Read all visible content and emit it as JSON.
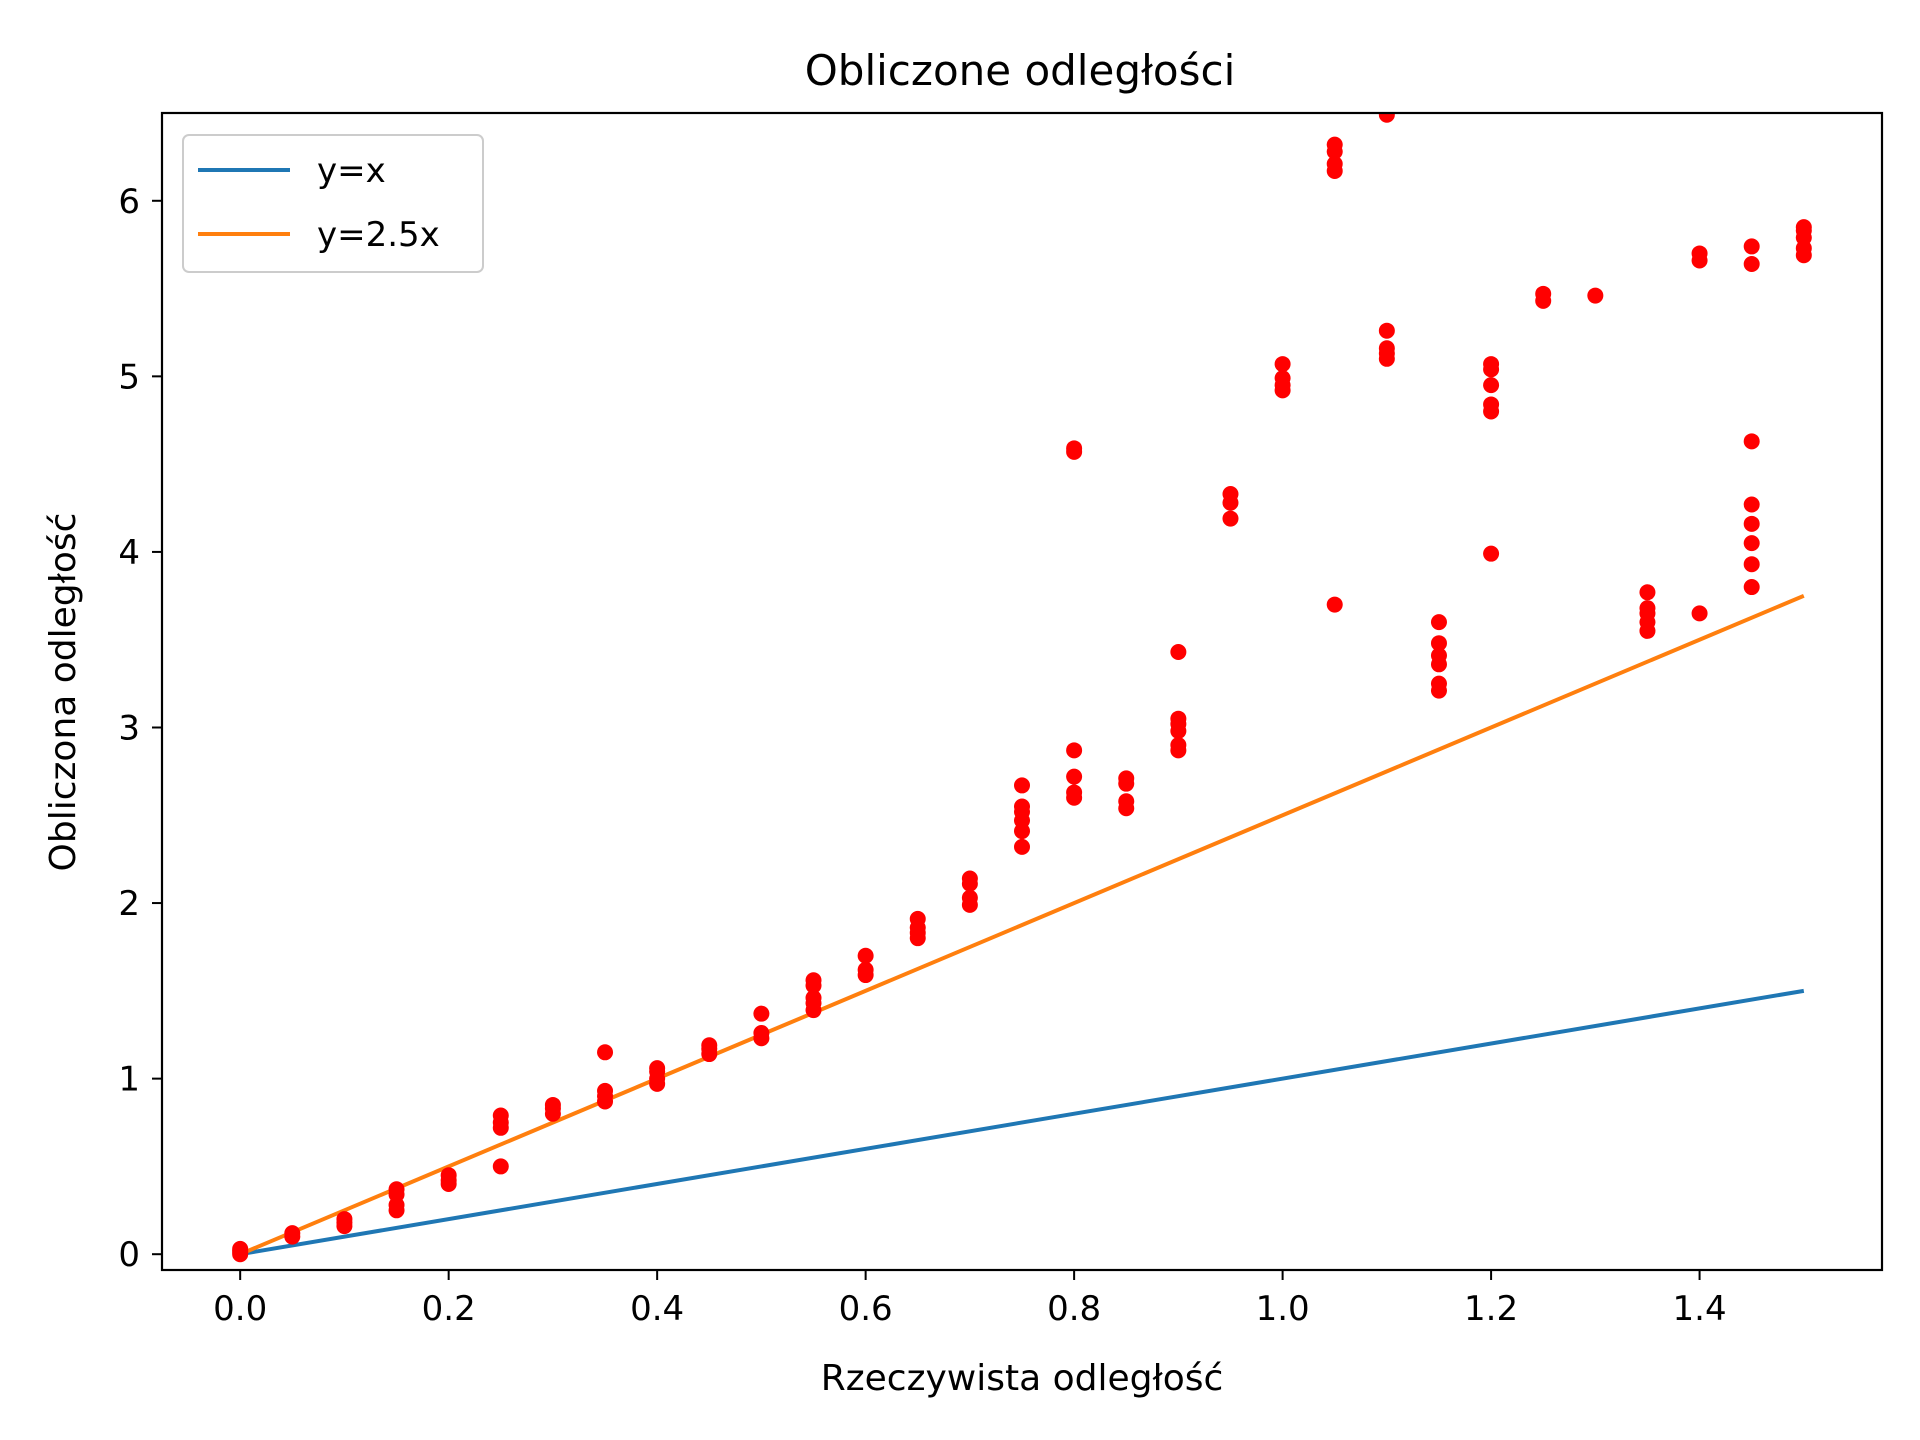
{
  "chart_data": {
    "type": "scatter",
    "title": "Obliczone odległości",
    "xlabel": "Rzeczywista odległość",
    "ylabel": "Obliczona odległość",
    "xlim": [
      -0.075,
      1.575
    ],
    "ylim": [
      -0.09,
      6.5
    ],
    "grid": false,
    "legend_position": "top-left",
    "x_ticks": [
      "0.0",
      "0.2",
      "0.4",
      "0.6",
      "0.8",
      "1.0",
      "1.2",
      "1.4"
    ],
    "y_ticks": [
      "0",
      "1",
      "2",
      "3",
      "4",
      "5",
      "6"
    ],
    "lines": [
      {
        "name": "y=x",
        "color": "#1f77b4",
        "x": [
          0,
          1.5
        ],
        "y": [
          0,
          1.5
        ]
      },
      {
        "name": "y=2.5x",
        "color": "#ff7f0e",
        "x": [
          0,
          1.5
        ],
        "y": [
          0,
          3.75
        ]
      }
    ],
    "scatter": {
      "color": "#ff0000",
      "points": [
        [
          0,
          0.0
        ],
        [
          0,
          0.01
        ],
        [
          0,
          0.03
        ],
        [
          0,
          0.02
        ],
        [
          0.05,
          0.1
        ],
        [
          0.05,
          0.12
        ],
        [
          0.1,
          0.16
        ],
        [
          0.1,
          0.18
        ],
        [
          0.1,
          0.2
        ],
        [
          0.15,
          0.25
        ],
        [
          0.15,
          0.28
        ],
        [
          0.15,
          0.34
        ],
        [
          0.15,
          0.37
        ],
        [
          0.2,
          0.4
        ],
        [
          0.2,
          0.42
        ],
        [
          0.2,
          0.45
        ],
        [
          0.25,
          0.5
        ],
        [
          0.25,
          0.72
        ],
        [
          0.25,
          0.75
        ],
        [
          0.25,
          0.79
        ],
        [
          0.3,
          0.8
        ],
        [
          0.3,
          0.83
        ],
        [
          0.3,
          0.85
        ],
        [
          0.35,
          0.87
        ],
        [
          0.35,
          0.9
        ],
        [
          0.35,
          0.93
        ],
        [
          0.35,
          1.15
        ],
        [
          0.4,
          0.97
        ],
        [
          0.4,
          1.0
        ],
        [
          0.4,
          1.04
        ],
        [
          0.4,
          1.06
        ],
        [
          0.45,
          1.14
        ],
        [
          0.45,
          1.17
        ],
        [
          0.45,
          1.19
        ],
        [
          0.5,
          1.23
        ],
        [
          0.5,
          1.26
        ],
        [
          0.5,
          1.37
        ],
        [
          0.55,
          1.39
        ],
        [
          0.55,
          1.43
        ],
        [
          0.55,
          1.46
        ],
        [
          0.55,
          1.53
        ],
        [
          0.55,
          1.56
        ],
        [
          0.6,
          1.59
        ],
        [
          0.6,
          1.62
        ],
        [
          0.6,
          1.7
        ],
        [
          0.65,
          1.8
        ],
        [
          0.65,
          1.83
        ],
        [
          0.65,
          1.86
        ],
        [
          0.65,
          1.91
        ],
        [
          0.7,
          1.99
        ],
        [
          0.7,
          2.03
        ],
        [
          0.7,
          2.11
        ],
        [
          0.7,
          2.14
        ],
        [
          0.75,
          2.32
        ],
        [
          0.75,
          2.41
        ],
        [
          0.75,
          2.47
        ],
        [
          0.75,
          2.52
        ],
        [
          0.75,
          2.55
        ],
        [
          0.75,
          2.67
        ],
        [
          0.8,
          2.6
        ],
        [
          0.8,
          2.63
        ],
        [
          0.8,
          2.72
        ],
        [
          0.8,
          2.87
        ],
        [
          0.8,
          4.57
        ],
        [
          0.8,
          4.59
        ],
        [
          0.85,
          2.54
        ],
        [
          0.85,
          2.58
        ],
        [
          0.85,
          2.68
        ],
        [
          0.85,
          2.71
        ],
        [
          0.9,
          2.87
        ],
        [
          0.9,
          2.9
        ],
        [
          0.9,
          2.98
        ],
        [
          0.9,
          3.02
        ],
        [
          0.9,
          3.05
        ],
        [
          0.9,
          3.43
        ],
        [
          0.95,
          4.19
        ],
        [
          0.95,
          4.28
        ],
        [
          0.95,
          4.33
        ],
        [
          1.0,
          4.92
        ],
        [
          1.0,
          4.95
        ],
        [
          1.0,
          4.99
        ],
        [
          1.0,
          5.07
        ],
        [
          1.05,
          3.7
        ],
        [
          1.05,
          6.17
        ],
        [
          1.05,
          6.21
        ],
        [
          1.05,
          6.28
        ],
        [
          1.05,
          6.32
        ],
        [
          1.1,
          5.1
        ],
        [
          1.1,
          5.13
        ],
        [
          1.1,
          5.16
        ],
        [
          1.1,
          5.26
        ],
        [
          1.1,
          6.49
        ],
        [
          1.15,
          3.21
        ],
        [
          1.15,
          3.25
        ],
        [
          1.15,
          3.36
        ],
        [
          1.15,
          3.41
        ],
        [
          1.15,
          3.48
        ],
        [
          1.15,
          3.6
        ],
        [
          1.2,
          3.99
        ],
        [
          1.2,
          4.8
        ],
        [
          1.2,
          4.84
        ],
        [
          1.2,
          4.95
        ],
        [
          1.2,
          5.04
        ],
        [
          1.2,
          5.07
        ],
        [
          1.25,
          5.43
        ],
        [
          1.25,
          5.47
        ],
        [
          1.3,
          5.46
        ],
        [
          1.35,
          3.55
        ],
        [
          1.35,
          3.6
        ],
        [
          1.35,
          3.65
        ],
        [
          1.35,
          3.68
        ],
        [
          1.35,
          3.77
        ],
        [
          1.4,
          3.65
        ],
        [
          1.4,
          5.66
        ],
        [
          1.4,
          5.7
        ],
        [
          1.45,
          3.8
        ],
        [
          1.45,
          3.93
        ],
        [
          1.45,
          4.05
        ],
        [
          1.45,
          4.16
        ],
        [
          1.45,
          4.27
        ],
        [
          1.45,
          4.63
        ],
        [
          1.45,
          5.64
        ],
        [
          1.45,
          5.74
        ],
        [
          1.5,
          5.69
        ],
        [
          1.5,
          5.73
        ],
        [
          1.5,
          5.79
        ],
        [
          1.5,
          5.83
        ],
        [
          1.5,
          5.85
        ]
      ]
    }
  }
}
